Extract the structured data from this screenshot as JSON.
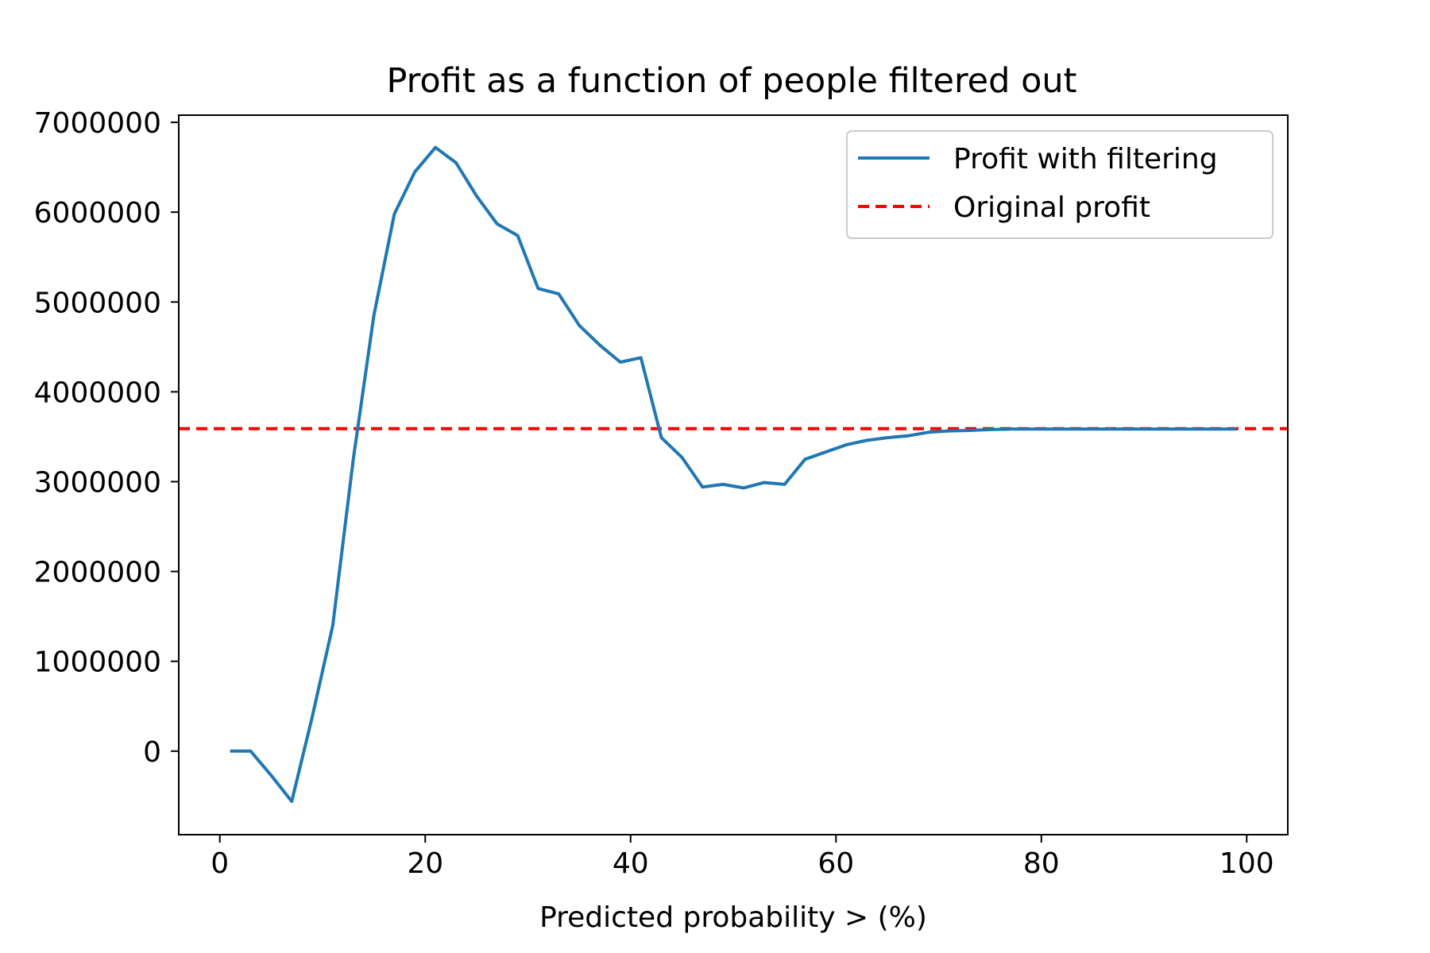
{
  "chart_data": {
    "type": "line",
    "title": "Profit as a function of people filtered out",
    "xlabel": "Predicted probability > (%)",
    "ylabel": "",
    "xlim": [
      -4,
      104
    ],
    "ylim": [
      -930000,
      7080000
    ],
    "x_ticks": [
      0,
      20,
      40,
      60,
      80,
      100
    ],
    "y_ticks": [
      0,
      1000000,
      2000000,
      3000000,
      4000000,
      5000000,
      6000000,
      7000000
    ],
    "x_tick_labels": [
      "0",
      "20",
      "40",
      "60",
      "80",
      "100"
    ],
    "y_tick_labels": [
      "0",
      "1000000",
      "2000000",
      "3000000",
      "4000000",
      "5000000",
      "6000000",
      "7000000"
    ],
    "grid": false,
    "legend_position": "top-right",
    "series": [
      {
        "name": "Profit with filtering",
        "style": "solid",
        "color": "#1f77b4",
        "x": [
          1,
          3,
          5,
          7,
          9,
          11,
          13,
          15,
          17,
          19,
          21,
          23,
          25,
          27,
          29,
          31,
          33,
          35,
          37,
          39,
          41,
          43,
          45,
          47,
          49,
          51,
          53,
          55,
          57,
          59,
          61,
          63,
          65,
          67,
          69,
          71,
          73,
          75,
          77,
          79,
          81,
          83,
          85,
          87,
          89,
          91,
          93,
          95,
          97,
          99
        ],
        "y": [
          0,
          0,
          -270000,
          -560000,
          380000,
          1400000,
          3250000,
          4850000,
          5980000,
          6450000,
          6720000,
          6550000,
          6180000,
          5870000,
          5740000,
          5150000,
          5090000,
          4740000,
          4520000,
          4330000,
          4380000,
          3490000,
          3270000,
          2940000,
          2970000,
          2930000,
          2990000,
          2970000,
          3250000,
          3330000,
          3410000,
          3460000,
          3490000,
          3510000,
          3550000,
          3565000,
          3570000,
          3580000,
          3585000,
          3585000,
          3585000,
          3585000,
          3585000,
          3585000,
          3585000,
          3585000,
          3585000,
          3585000,
          3585000,
          3585000
        ]
      },
      {
        "name": "Original profit",
        "style": "dashed",
        "color": "#ff0000",
        "y_constant": 3590000
      }
    ]
  }
}
